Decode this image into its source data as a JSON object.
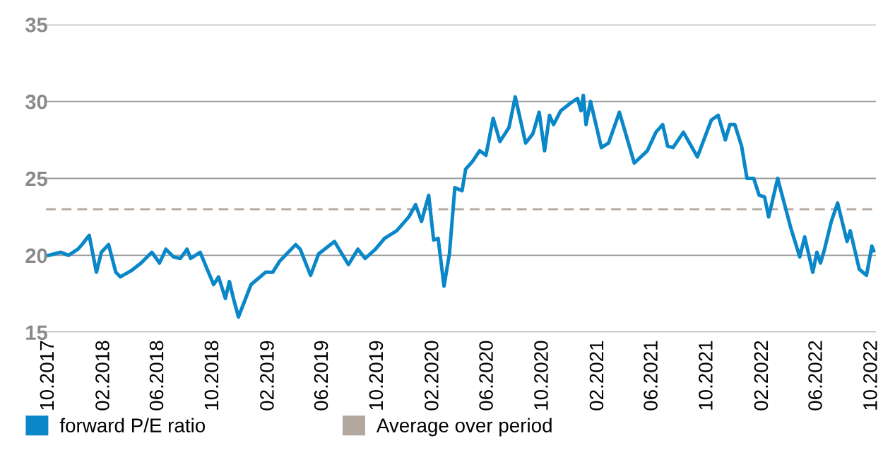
{
  "chart_data": {
    "type": "line",
    "x": [
      "2017-10-01",
      "2017-10-28",
      "2017-11-14",
      "2017-12-05",
      "2017-12-14",
      "2017-12-30",
      "2018-01-15",
      "2018-01-26",
      "2018-02-11",
      "2018-02-27",
      "2018-03-09",
      "2018-04-02",
      "2018-04-24",
      "2018-05-18",
      "2018-06-04",
      "2018-06-18",
      "2018-07-05",
      "2018-07-20",
      "2018-08-04",
      "2018-08-12",
      "2018-09-02",
      "2018-10-02",
      "2018-10-13",
      "2018-10-28",
      "2018-11-06",
      "2018-11-14",
      "2018-11-26",
      "2018-12-24",
      "2019-01-25",
      "2019-02-10",
      "2019-02-25",
      "2019-04-02",
      "2019-04-12",
      "2019-05-05",
      "2019-05-23",
      "2019-06-27",
      "2019-07-28",
      "2019-08-18",
      "2019-09-03",
      "2019-09-26",
      "2019-10-16",
      "2019-11-12",
      "2019-12-09",
      "2019-12-24",
      "2020-01-06",
      "2020-01-22",
      "2020-02-02",
      "2020-02-12",
      "2020-02-25",
      "2020-03-08",
      "2020-03-20",
      "2020-04-05",
      "2020-04-13",
      "2020-04-28",
      "2020-05-14",
      "2020-05-28",
      "2020-06-13",
      "2020-06-28",
      "2020-07-18",
      "2020-08-01",
      "2020-08-24",
      "2020-09-09",
      "2020-09-23",
      "2020-10-05",
      "2020-10-16",
      "2020-10-25",
      "2020-11-10",
      "2020-12-02",
      "2020-12-17",
      "2020-12-25",
      "2020-12-30",
      "2021-01-05",
      "2021-01-15",
      "2021-02-08",
      "2021-02-24",
      "2021-03-20",
      "2021-04-22",
      "2021-05-21",
      "2021-06-09",
      "2021-06-24",
      "2021-07-05",
      "2021-07-17",
      "2021-08-09",
      "2021-09-09",
      "2021-10-10",
      "2021-10-25",
      "2021-11-10",
      "2021-11-20",
      "2021-12-01",
      "2021-12-16",
      "2021-12-28",
      "2022-01-12",
      "2022-01-24",
      "2022-02-05",
      "2022-02-14",
      "2022-03-06",
      "2022-04-04",
      "2022-04-24",
      "2022-05-05",
      "2022-05-23",
      "2022-06-01",
      "2022-06-09",
      "2022-06-18",
      "2022-07-03",
      "2022-07-17",
      "2022-08-07",
      "2022-08-14",
      "2022-09-03",
      "2022-09-19",
      "2022-10-01",
      "2022-10-05"
    ],
    "series": [
      {
        "name": "forward P/E ratio",
        "color": "#0a87c8",
        "values": [
          20.0,
          20.2,
          20.0,
          20.4,
          20.7,
          21.3,
          18.9,
          20.2,
          20.7,
          18.9,
          18.6,
          19.0,
          19.5,
          20.2,
          19.5,
          20.4,
          19.9,
          19.8,
          20.4,
          19.8,
          20.2,
          18.1,
          18.6,
          17.2,
          18.3,
          17.3,
          16.0,
          18.1,
          18.9,
          18.9,
          19.6,
          20.7,
          20.4,
          18.7,
          20.1,
          20.9,
          19.4,
          20.4,
          19.8,
          20.4,
          21.1,
          21.6,
          22.5,
          23.3,
          22.2,
          23.9,
          21.0,
          21.1,
          18.0,
          20.1,
          24.4,
          24.2,
          25.6,
          26.1,
          26.8,
          26.5,
          28.9,
          27.4,
          28.3,
          30.3,
          27.3,
          27.9,
          29.3,
          26.8,
          29.1,
          28.5,
          29.4,
          29.9,
          30.2,
          29.4,
          30.4,
          28.5,
          30.0,
          27.0,
          27.3,
          29.3,
          26.0,
          26.8,
          28.0,
          28.5,
          27.1,
          27.0,
          28.0,
          26.4,
          28.8,
          29.1,
          27.5,
          28.5,
          28.5,
          27.1,
          25.0,
          25.0,
          23.9,
          23.8,
          22.5,
          25.0,
          21.8,
          19.9,
          21.2,
          18.9,
          20.2,
          19.5,
          20.4,
          22.2,
          23.4,
          20.9,
          21.6,
          19.1,
          18.7,
          20.6,
          20.3
        ]
      }
    ],
    "ref_lines": [
      {
        "axis": "y",
        "value": 23,
        "label": "Average over period",
        "color": "#b2a89e",
        "line_style": "dashed"
      }
    ],
    "xlim": [
      "2017-09-25",
      "2022-10-10"
    ],
    "xticks": [
      {
        "value": "2017-10-01",
        "label": "10.2017"
      },
      {
        "value": "2018-02-01",
        "label": "02.2018"
      },
      {
        "value": "2018-06-01",
        "label": "06.2018"
      },
      {
        "value": "2018-10-01",
        "label": "10.2018"
      },
      {
        "value": "2019-02-01",
        "label": "02.2019"
      },
      {
        "value": "2019-06-01",
        "label": "06.2019"
      },
      {
        "value": "2019-10-01",
        "label": "10.2019"
      },
      {
        "value": "2020-02-01",
        "label": "02.2020"
      },
      {
        "value": "2020-06-01",
        "label": "06.2020"
      },
      {
        "value": "2020-10-01",
        "label": "10.2020"
      },
      {
        "value": "2021-02-01",
        "label": "02.2021"
      },
      {
        "value": "2021-06-01",
        "label": "06.2021"
      },
      {
        "value": "2021-10-01",
        "label": "10.2021"
      },
      {
        "value": "2022-02-01",
        "label": "02.2022"
      },
      {
        "value": "2022-06-01",
        "label": "06.2022"
      },
      {
        "value": "2022-10-01",
        "label": "10.2022"
      }
    ],
    "ylim": [
      15,
      35
    ],
    "yticks": [
      15,
      20,
      25,
      30,
      35
    ],
    "grid": "y",
    "legend": "bottom",
    "marker": "none",
    "line_style": "solid"
  }
}
